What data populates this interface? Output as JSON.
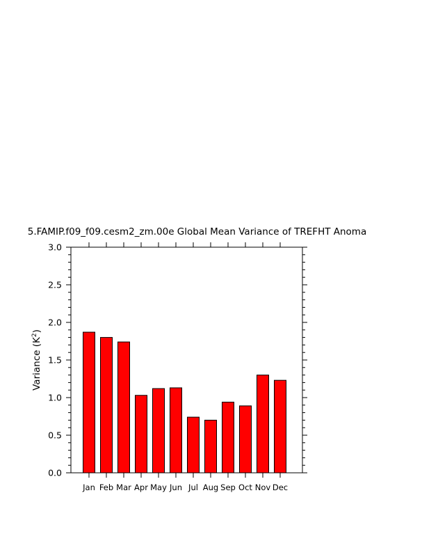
{
  "chart_data": {
    "type": "bar",
    "title": "5.FAMIP.f09_f09.cesm2_zm.00e Global Mean Variance of TREFHT Anoma",
    "xlabel": "",
    "ylabel": "Variance (K",
    "ylabel_sup": "2",
    "ylabel_close": ")",
    "categories": [
      "Jan",
      "Feb",
      "Mar",
      "Apr",
      "May",
      "Jun",
      "Jul",
      "Aug",
      "Sep",
      "Oct",
      "Nov",
      "Dec"
    ],
    "values": [
      1.87,
      1.8,
      1.74,
      1.03,
      1.12,
      1.13,
      0.74,
      0.7,
      0.94,
      0.89,
      1.3,
      1.23
    ],
    "ylim": [
      0,
      3.0
    ],
    "yticks": [
      "0.0",
      "0.5",
      "1.0",
      "1.5",
      "2.0",
      "2.5",
      "3.0"
    ],
    "bar_color": "#ff0000",
    "grid": false,
    "legend": "none"
  }
}
